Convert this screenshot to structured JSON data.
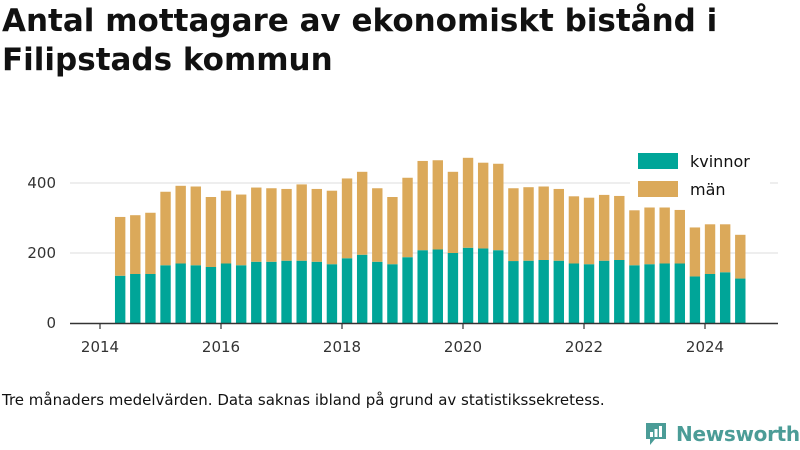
{
  "chart_data": {
    "type": "bar",
    "stacked": true,
    "title": "Antal mottagare av ekonomiskt bistånd i Filipstads kommun",
    "xlabel": "",
    "ylabel": "",
    "x_ticks": [
      "2014",
      "2016",
      "2018",
      "2020",
      "2022",
      "2024"
    ],
    "y_ticks": [
      "0",
      "200",
      "400"
    ],
    "ylim": [
      0,
      500
    ],
    "grid": true,
    "legend_position": "top-right",
    "x_start": "2014-01",
    "x_end": "2025-06",
    "categories": [
      "2014-05",
      "2014-08",
      "2014-11",
      "2015-02",
      "2015-05",
      "2015-08",
      "2015-11",
      "2016-02",
      "2016-05",
      "2016-08",
      "2016-11",
      "2017-02",
      "2017-05",
      "2017-08",
      "2017-11",
      "2018-02",
      "2018-05",
      "2018-08",
      "2018-11",
      "2019-02",
      "2019-05",
      "2019-08",
      "2019-11",
      "2020-02",
      "2020-05",
      "2020-08",
      "2020-11",
      "2021-02",
      "2021-05",
      "2021-08",
      "2021-11",
      "2022-02",
      "2022-05",
      "2022-08",
      "2022-11",
      "2023-02",
      "2023-05",
      "2023-08",
      "2023-11",
      "2024-02",
      "2024-05",
      "2024-08"
    ],
    "series": [
      {
        "name": "kvinnor",
        "color": "#00a598",
        "values": [
          135,
          140,
          140,
          165,
          170,
          165,
          160,
          170,
          165,
          175,
          175,
          178,
          178,
          175,
          168,
          185,
          195,
          175,
          168,
          188,
          208,
          210,
          200,
          215,
          213,
          208,
          177,
          178,
          180,
          178,
          170,
          168,
          178,
          180,
          165,
          168,
          170,
          170,
          133,
          140,
          145,
          127
        ]
      },
      {
        "name": "män",
        "color": "#dba95a",
        "values": [
          168,
          168,
          175,
          210,
          222,
          225,
          200,
          208,
          202,
          212,
          210,
          205,
          218,
          208,
          210,
          228,
          237,
          210,
          192,
          227,
          255,
          255,
          232,
          257,
          245,
          247,
          208,
          210,
          210,
          205,
          192,
          190,
          188,
          183,
          157,
          162,
          160,
          153,
          140,
          142,
          137,
          125
        ]
      }
    ]
  },
  "caption": "Tre månaders medelvärden. Data saknas ibland på grund av statistikssekretess.",
  "brand": {
    "name": "Newsworthy",
    "color": "#4b9c97"
  }
}
